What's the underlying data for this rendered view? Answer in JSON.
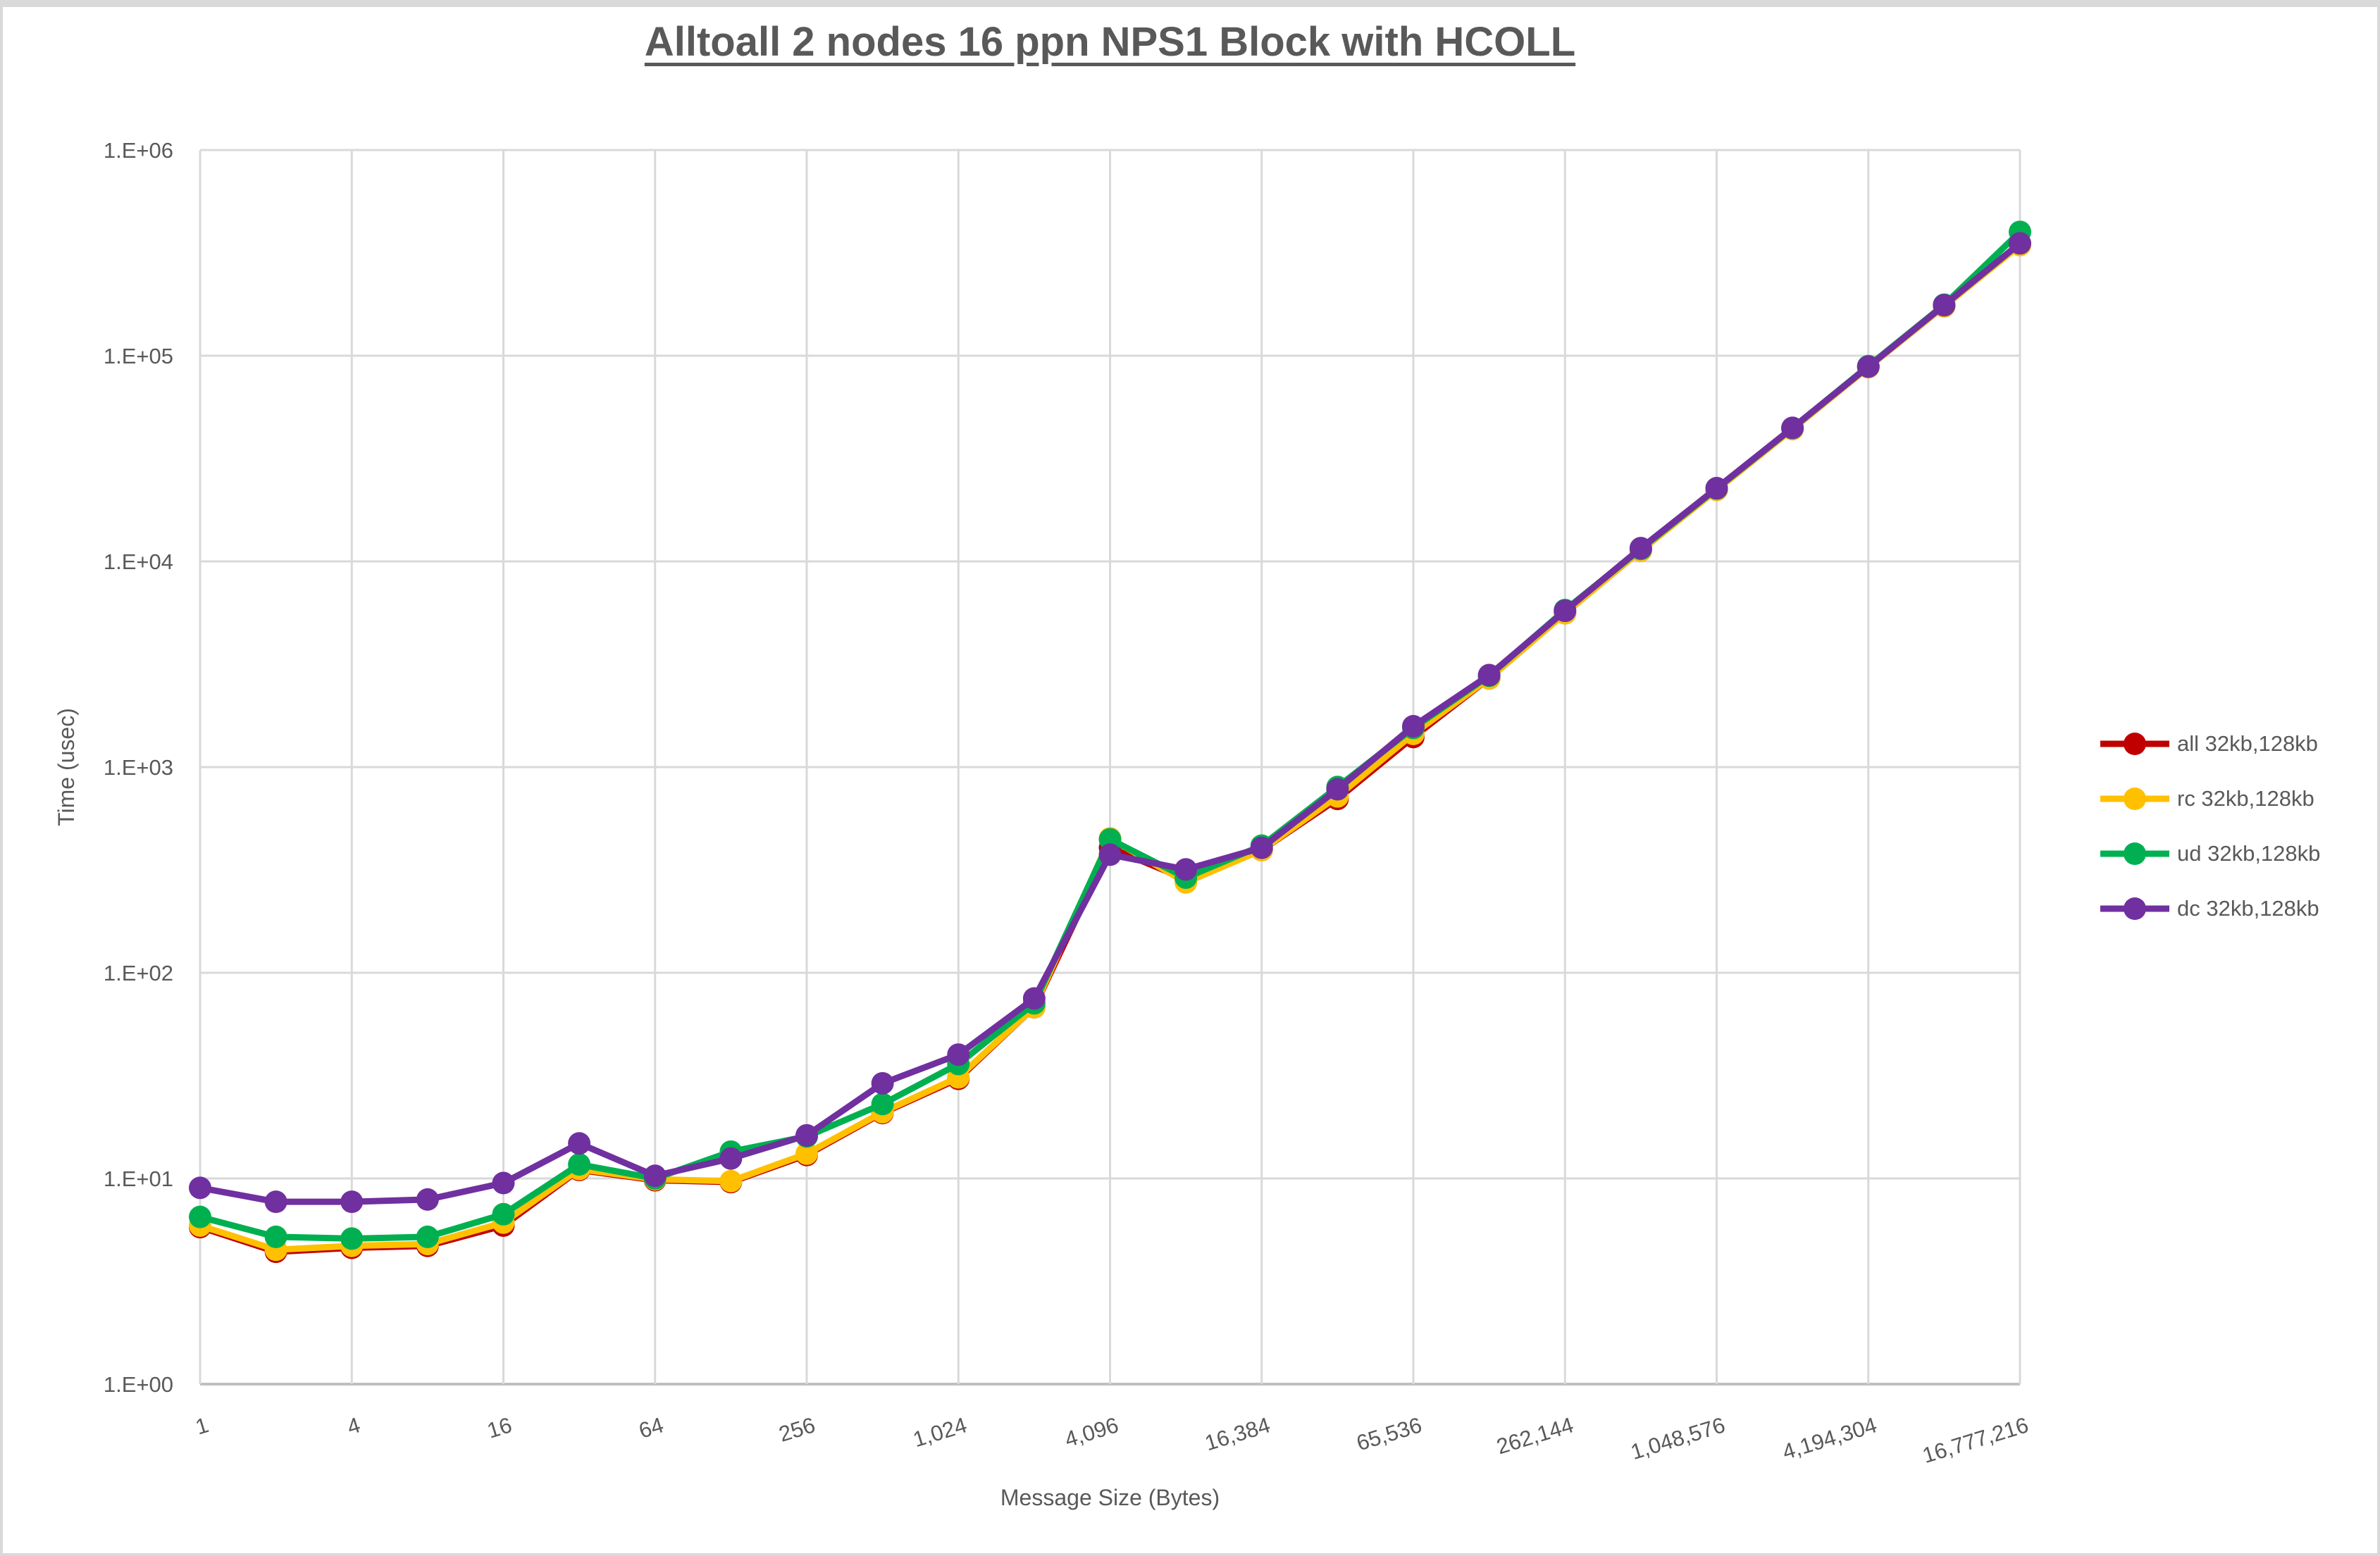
{
  "page": {
    "title": "Alltoall 2 nodes 16 ppn NPS1 Block with HCOLL"
  },
  "colors": {
    "text": "#595959",
    "gridline": "#d9d9d9",
    "axis_line": "#bfbfbf",
    "background": "#ffffff",
    "series_all": "#C00000",
    "series_rc": "#FFC000",
    "series_ud": "#00B050",
    "series_dc": "#7030A0"
  },
  "chart_data": {
    "type": "line",
    "title": "Alltoall 2 nodes 16 ppn NPS1 Block with HCOLL",
    "xlabel": "Message Size (Bytes)",
    "ylabel": "Time (usec)",
    "x_scale": "log2",
    "y_scale": "log10",
    "ylim": [
      1,
      1000000
    ],
    "grid": true,
    "legend_position": "right",
    "x_tick_labels": [
      "1",
      "4",
      "16",
      "64",
      "256",
      "1,024",
      "4,096",
      "16,384",
      "65,536",
      "262,144",
      "1,048,576",
      "4,194,304",
      "16,777,216"
    ],
    "y_tick_labels": [
      "1.E+00",
      "1.E+01",
      "1.E+02",
      "1.E+03",
      "1.E+04",
      "1.E+05",
      "1.E+06"
    ],
    "categories": [
      1,
      2,
      4,
      8,
      16,
      32,
      64,
      128,
      256,
      512,
      1024,
      2048,
      4096,
      8192,
      16384,
      32768,
      65536,
      131072,
      262144,
      524288,
      1048576,
      2097152,
      4194304,
      8388608,
      16777216
    ],
    "series": [
      {
        "key": "all",
        "name": "all 32kb,128kb",
        "color": "#C00000",
        "values": [
          5.8,
          4.4,
          4.6,
          4.7,
          5.9,
          11.0,
          9.8,
          9.6,
          13.0,
          20.8,
          30.5,
          68,
          405,
          285,
          395,
          700,
          1400,
          2700,
          5600,
          11300,
          22300,
          44000,
          88000,
          174000,
          348000
        ]
      },
      {
        "key": "rc",
        "name": "rc 32kb,128kb",
        "color": "#FFC000",
        "values": [
          5.9,
          4.5,
          4.7,
          4.8,
          6.1,
          11.1,
          9.9,
          9.7,
          13.2,
          21,
          31,
          68,
          450,
          275,
          395,
          720,
          1450,
          2700,
          5600,
          11300,
          22300,
          44000,
          88000,
          174000,
          345000
        ]
      },
      {
        "key": "ud",
        "name": "ud 32kb,128kb",
        "color": "#00B050",
        "values": [
          6.5,
          5.2,
          5.1,
          5.2,
          6.7,
          11.7,
          10.0,
          13.5,
          16.0,
          23,
          36,
          71,
          445,
          290,
          415,
          800,
          1550,
          2780,
          5800,
          11500,
          22600,
          44500,
          89000,
          177000,
          400000
        ]
      },
      {
        "key": "dc",
        "name": "dc 32kb,128kb",
        "color": "#7030A0",
        "values": [
          9.0,
          7.7,
          7.7,
          7.9,
          9.5,
          14.8,
          10.3,
          12.5,
          16.2,
          29,
          40,
          75,
          375,
          318,
          405,
          780,
          1580,
          2800,
          5750,
          11600,
          22700,
          44600,
          88500,
          176000,
          352000
        ]
      }
    ]
  }
}
